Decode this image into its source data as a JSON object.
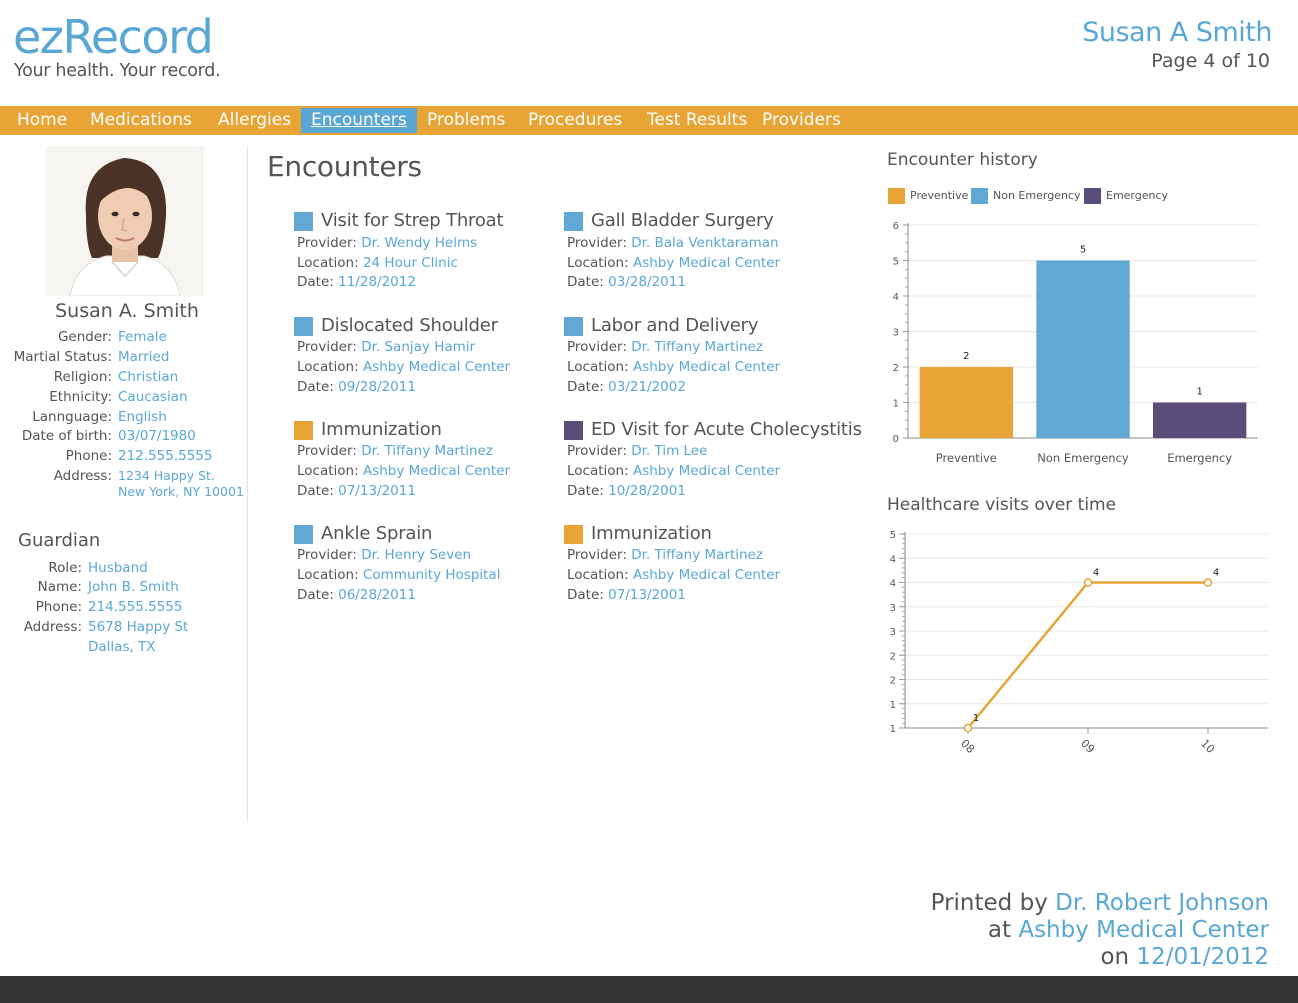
{
  "header": {
    "logo": "ezRecord",
    "tagline": "Your health. Your record.",
    "patient_name": "Susan A Smith",
    "page_indicator": "Page 4 of 10"
  },
  "nav": {
    "items": [
      "Home",
      "Medications",
      "Allergies",
      "Encounters",
      "Problems",
      "Procedures",
      "Test Results",
      "Providers"
    ],
    "active": "Encounters"
  },
  "patient": {
    "name": "Susan A. Smith",
    "fields": [
      {
        "label": "Gender:",
        "value": "Female"
      },
      {
        "label": "Martial Status:",
        "value": "Married"
      },
      {
        "label": "Religion:",
        "value": "Christian"
      },
      {
        "label": "Ethnicity:",
        "value": "Caucasian"
      },
      {
        "label": "Lannguage:",
        "value": "English"
      },
      {
        "label": "Date of birth:",
        "value": "03/07/1980"
      },
      {
        "label": "Phone:",
        "value": "212.555.5555"
      },
      {
        "label": "Address:",
        "value": "1234 Happy St.",
        "value2": "New York, NY 10001"
      }
    ]
  },
  "guardian": {
    "title": "Guardian",
    "fields": [
      {
        "label": "Role:",
        "value": "Husband"
      },
      {
        "label": "Name:",
        "value": "John B. Smith"
      },
      {
        "label": "Phone:",
        "value": "214.555.5555"
      },
      {
        "label": "Address:",
        "value": "5678 Happy St",
        "value2": "Dallas, TX"
      }
    ]
  },
  "encounters": {
    "title": "Encounters",
    "labels": {
      "provider": "Provider:",
      "location": "Location:",
      "date": "Date:"
    },
    "items": [
      {
        "title": "Visit for Strep Throat",
        "type": "Non Emergency",
        "provider": "Dr. Wendy Helms",
        "location": "24 Hour Clinic",
        "date": "11/28/2012"
      },
      {
        "title": "Gall Bladder Surgery",
        "type": "Non Emergency",
        "provider": "Dr. Bala Venktaraman",
        "location": "Ashby Medical Center",
        "date": "03/28/2011"
      },
      {
        "title": "Dislocated Shoulder",
        "type": "Non Emergency",
        "provider": "Dr. Sanjay Hamir",
        "location": "Ashby Medical Center",
        "date": "09/28/2011"
      },
      {
        "title": "Labor and Delivery",
        "type": "Non Emergency",
        "provider": "Dr. Tiffany Martinez",
        "location": "Ashby Medical Center",
        "date": "03/21/2002"
      },
      {
        "title": "Immunization",
        "type": "Preventive",
        "provider": "Dr. Tiffany Martinez",
        "location": "Ashby Medical Center",
        "date": "07/13/2011"
      },
      {
        "title": "ED Visit for Acute Cholecystitis",
        "type": "Emergency",
        "provider": "Dr. Tim Lee",
        "location": "Ashby Medical Center",
        "date": "10/28/2001"
      },
      {
        "title": "Ankle Sprain",
        "type": "Non Emergency",
        "provider": "Dr. Henry Seven",
        "location": "Community Hospital",
        "date": "06/28/2011"
      },
      {
        "title": "Immunization",
        "type": "Preventive",
        "provider": "Dr. Tiffany Martinez",
        "location": "Ashby Medical Center",
        "date": "07/13/2001"
      }
    ]
  },
  "colors": {
    "Preventive": "#e8a535",
    "Non Emergency": "#62a8d4",
    "Emergency": "#5a4d79",
    "accent": "#5aa7d6",
    "nav": "#e8a535"
  },
  "chart_data": [
    {
      "type": "bar",
      "title": "Encounter history",
      "categories": [
        "Preventive",
        "Non Emergency",
        "Emergency"
      ],
      "values": [
        2,
        5,
        1
      ],
      "legend": [
        "Preventive",
        "Non Emergency",
        "Emergency"
      ],
      "legend_position": "top-left",
      "ylim": [
        0,
        6
      ],
      "yticks": [
        0,
        1,
        2,
        3,
        4,
        5,
        6
      ],
      "grid": true
    },
    {
      "type": "line",
      "title": "Healthcare visits over time",
      "x": [
        "08",
        "09",
        "10"
      ],
      "values": [
        1,
        4,
        4
      ],
      "ylim": [
        1,
        5
      ],
      "ytick_labels": [
        "1",
        "1",
        "2",
        "2",
        "3",
        "3",
        "4",
        "4",
        "5"
      ],
      "grid": true,
      "color": "#e8a535"
    }
  ],
  "footer": {
    "printed_by_label": "Printed by",
    "printed_by": "Dr. Robert Johnson",
    "at_label": "at",
    "at": "Ashby Medical Center",
    "on_label": "on",
    "on": "12/01/2012"
  }
}
